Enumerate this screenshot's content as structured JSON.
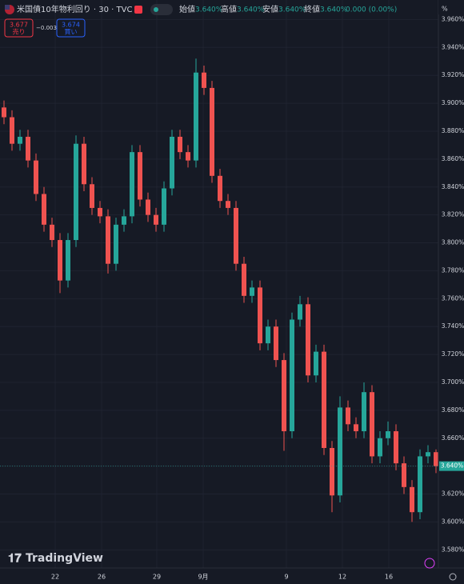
{
  "header": {
    "title": "米国債10年物利回り · 30 · TVC",
    "ohlc": [
      {
        "name": "始値",
        "value": "3.640%"
      },
      {
        "name": "高値",
        "value": "3.640%"
      },
      {
        "name": "安値",
        "value": "3.640%"
      },
      {
        "name": "終値",
        "value": "3.640%"
      }
    ],
    "change": "0.000 (0.00%)",
    "sell": {
      "price": "3.677",
      "label": "売り"
    },
    "spread": "−0.003",
    "buy": {
      "price": "3.674",
      "label": "買い"
    },
    "unit": "%",
    "logo": "TradingView"
  },
  "chart_data": {
    "type": "candlestick",
    "up_color": "#26a69a",
    "down_color": "#ef5350",
    "grid": true,
    "open": [
      3.897,
      3.89,
      3.871,
      3.876,
      3.859,
      3.835,
      3.813,
      3.802,
      3.773,
      3.802,
      3.871,
      3.842,
      3.825,
      3.819,
      3.785,
      3.813,
      3.819,
      3.865,
      3.831,
      3.82,
      3.813,
      3.839,
      3.876,
      3.865,
      3.859,
      3.922,
      3.911,
      3.848,
      3.83,
      3.825,
      3.785,
      3.762,
      3.768,
      3.728,
      3.74,
      3.716,
      3.665,
      3.745,
      3.756,
      3.705,
      3.722,
      3.653,
      3.619,
      3.682,
      3.67,
      3.665,
      3.693,
      3.647,
      3.66,
      3.665,
      3.642,
      3.625,
      3.607,
      3.647,
      3.65
    ],
    "high": [
      3.902,
      3.895,
      3.881,
      3.881,
      3.864,
      3.84,
      3.818,
      3.807,
      3.807,
      3.877,
      3.876,
      3.847,
      3.83,
      3.824,
      3.818,
      3.824,
      3.87,
      3.87,
      3.836,
      3.825,
      3.844,
      3.881,
      3.881,
      3.87,
      3.932,
      3.927,
      3.916,
      3.853,
      3.835,
      3.83,
      3.79,
      3.773,
      3.773,
      3.745,
      3.745,
      3.721,
      3.75,
      3.762,
      3.761,
      3.727,
      3.727,
      3.658,
      3.69,
      3.687,
      3.675,
      3.7,
      3.698,
      3.665,
      3.672,
      3.67,
      3.647,
      3.63,
      3.652,
      3.655,
      3.652
    ],
    "low": [
      3.885,
      3.866,
      3.866,
      3.854,
      3.83,
      3.808,
      3.797,
      3.764,
      3.768,
      3.797,
      3.837,
      3.82,
      3.814,
      3.778,
      3.78,
      3.808,
      3.814,
      3.826,
      3.815,
      3.808,
      3.808,
      3.834,
      3.86,
      3.854,
      3.854,
      3.906,
      3.843,
      3.825,
      3.82,
      3.78,
      3.757,
      3.757,
      3.723,
      3.723,
      3.711,
      3.651,
      3.66,
      3.74,
      3.7,
      3.7,
      3.648,
      3.607,
      3.614,
      3.665,
      3.66,
      3.66,
      3.642,
      3.642,
      3.655,
      3.637,
      3.62,
      3.6,
      3.602,
      3.642,
      3.635
    ],
    "close": [
      3.89,
      3.871,
      3.876,
      3.859,
      3.835,
      3.813,
      3.802,
      3.773,
      3.802,
      3.871,
      3.842,
      3.825,
      3.819,
      3.785,
      3.813,
      3.819,
      3.865,
      3.831,
      3.82,
      3.813,
      3.839,
      3.876,
      3.865,
      3.859,
      3.922,
      3.911,
      3.848,
      3.83,
      3.825,
      3.785,
      3.762,
      3.768,
      3.728,
      3.74,
      3.716,
      3.665,
      3.745,
      3.756,
      3.705,
      3.722,
      3.653,
      3.619,
      3.682,
      3.67,
      3.665,
      3.693,
      3.647,
      3.66,
      3.665,
      3.642,
      3.625,
      3.607,
      3.647,
      3.65,
      3.64
    ],
    "xlim": [
      -0.5,
      54.3
    ],
    "xticks": [
      {
        "value": 6.4,
        "label": "22"
      },
      {
        "value": 12.2,
        "label": "26"
      },
      {
        "value": 19.1,
        "label": "29"
      },
      {
        "value": 24.9,
        "label": "9月"
      },
      {
        "value": 35.3,
        "label": "9"
      },
      {
        "value": 42.3,
        "label": "12"
      },
      {
        "value": 48.1,
        "label": "16"
      }
    ],
    "ylim": [
      3.567,
      3.974
    ],
    "yticks": [
      {
        "value": 3.58,
        "label": "3.580%"
      },
      {
        "value": 3.6,
        "label": "3.600%"
      },
      {
        "value": 3.62,
        "label": "3.620%"
      },
      {
        "value": 3.64,
        "label": "3.640%"
      },
      {
        "value": 3.66,
        "label": "3.660%"
      },
      {
        "value": 3.68,
        "label": "3.680%"
      },
      {
        "value": 3.7,
        "label": "3.700%"
      },
      {
        "value": 3.72,
        "label": "3.720%"
      },
      {
        "value": 3.74,
        "label": "3.740%"
      },
      {
        "value": 3.76,
        "label": "3.760%"
      },
      {
        "value": 3.78,
        "label": "3.780%"
      },
      {
        "value": 3.8,
        "label": "3.800%"
      },
      {
        "value": 3.82,
        "label": "3.820%"
      },
      {
        "value": 3.84,
        "label": "3.840%"
      },
      {
        "value": 3.86,
        "label": "3.860%"
      },
      {
        "value": 3.88,
        "label": "3.880%"
      },
      {
        "value": 3.9,
        "label": "3.900%"
      },
      {
        "value": 3.92,
        "label": "3.920%"
      },
      {
        "value": 3.94,
        "label": "3.940%"
      },
      {
        "value": 3.96,
        "label": "3.960%"
      }
    ],
    "last_price": {
      "value": 3.64,
      "label": "3.640%"
    }
  }
}
